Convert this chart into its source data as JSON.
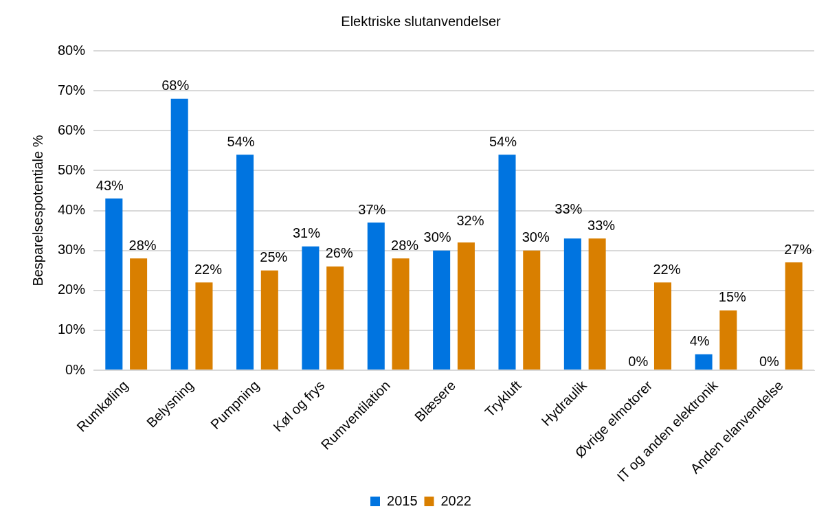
{
  "chart_data": {
    "type": "bar",
    "title": "Elektriske slutanvendelser",
    "ylabel": "Besparelsespotentiale %",
    "categories": [
      "Rumkøling",
      "Belysning",
      "Pumpning",
      "Køl og frys",
      "Rumventilation",
      "Blæsere",
      "Trykluft",
      "Hydraulik",
      "Øvrige elmotorer",
      "IT og anden elektronik",
      "Anden elanvendelse"
    ],
    "series": [
      {
        "name": "2015",
        "color": "#0074e0",
        "values": [
          43,
          68,
          54,
          31,
          37,
          30,
          54,
          33,
          0,
          4,
          0
        ],
        "value_labels": [
          "43%",
          "68%",
          "54%",
          "31%",
          "37%",
          "30%",
          "54%",
          "33%",
          "0%",
          "4%",
          "0%"
        ]
      },
      {
        "name": "2022",
        "color": "#d97f00",
        "values": [
          28,
          22,
          25,
          26,
          28,
          32,
          30,
          33,
          22,
          15,
          27
        ],
        "value_labels": [
          "28%",
          "22%",
          "25%",
          "26%",
          "28%",
          "32%",
          "30%",
          "33%",
          "22%",
          "15%",
          "27%"
        ]
      }
    ],
    "ylim": [
      0,
      80
    ],
    "yticks": [
      {
        "value": 0,
        "label": "0%"
      },
      {
        "value": 10,
        "label": "10%"
      },
      {
        "value": 20,
        "label": "20%"
      },
      {
        "value": 30,
        "label": "30%"
      },
      {
        "value": 40,
        "label": "40%"
      },
      {
        "value": 50,
        "label": "50%"
      },
      {
        "value": 60,
        "label": "60%"
      },
      {
        "value": 70,
        "label": "70%"
      },
      {
        "value": 80,
        "label": "80%"
      }
    ],
    "grid": "y",
    "legend": "bottom"
  }
}
